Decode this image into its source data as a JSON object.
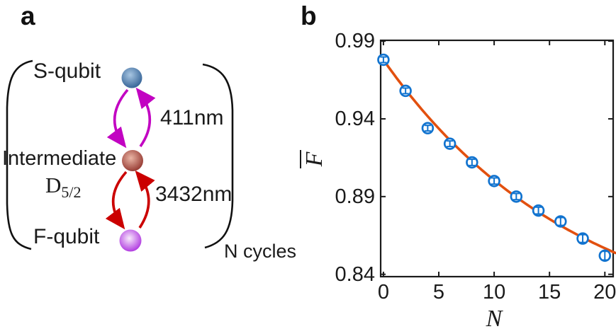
{
  "panels": {
    "a": {
      "label": "a",
      "nodes": {
        "s_qubit": "S-qubit",
        "intermediate": "Intermediate",
        "intermediate_state_base": "D",
        "intermediate_state_sub": "5/2",
        "f_qubit": "F-qubit"
      },
      "transitions": {
        "upper_wavelength": "411nm",
        "lower_wavelength": "3432nm"
      },
      "cycles_label": "N cycles",
      "colors": {
        "s_sphere_edge": "#2d5d92",
        "s_sphere_hi": "#a8c6e2",
        "intermediate_sphere_edge": "#8e2f28",
        "intermediate_sphere_hi": "#eab5a5",
        "f_sphere_edge": "#a826dd",
        "f_sphere_hi": "#f8eafc",
        "upper_arrow": "#c203c2",
        "lower_arrow": "#cb0000",
        "bracket": "#111111"
      }
    },
    "b": {
      "label": "b"
    }
  },
  "chart_data": {
    "type": "scatter",
    "title": "",
    "xlabel": "N",
    "ylabel": "F",
    "ylabel_overline": true,
    "x": [
      0,
      2,
      4,
      6,
      8,
      10,
      12,
      14,
      16,
      18,
      20
    ],
    "y": [
      0.978,
      0.958,
      0.934,
      0.924,
      0.912,
      0.9,
      0.89,
      0.881,
      0.874,
      0.863,
      0.852
    ],
    "yerr": [
      0.0018,
      0.0018,
      0.0018,
      0.0018,
      0.002,
      0.002,
      0.002,
      0.0022,
      0.0025,
      0.0025,
      0.0028
    ],
    "fit_curve": {
      "type": "exponential_decay_with_offset",
      "formula": "F(N) = C + A*exp(-N/tau)",
      "C": 0.8,
      "A": 0.178,
      "tau": 17.5,
      "x_start": -0.05,
      "x_end": 20.95
    },
    "xlim": [
      -0.25,
      20.75
    ],
    "ylim": [
      0.8385,
      0.9905
    ],
    "xtick_values": [
      0,
      5,
      10,
      15,
      20
    ],
    "xtick_labels": [
      "0",
      "5",
      "10",
      "15",
      "20"
    ],
    "ytick_values": [
      0.99,
      0.94,
      0.89,
      0.84
    ],
    "ytick_labels": [
      "0.99",
      "0.94",
      "0.89",
      "0.84"
    ],
    "grid": false,
    "box": true,
    "legend": null,
    "marker_color": "#1173cf",
    "marker_face": "#ffffff",
    "line_color": "#e2500f",
    "axis_color": "#1a1a1a"
  }
}
